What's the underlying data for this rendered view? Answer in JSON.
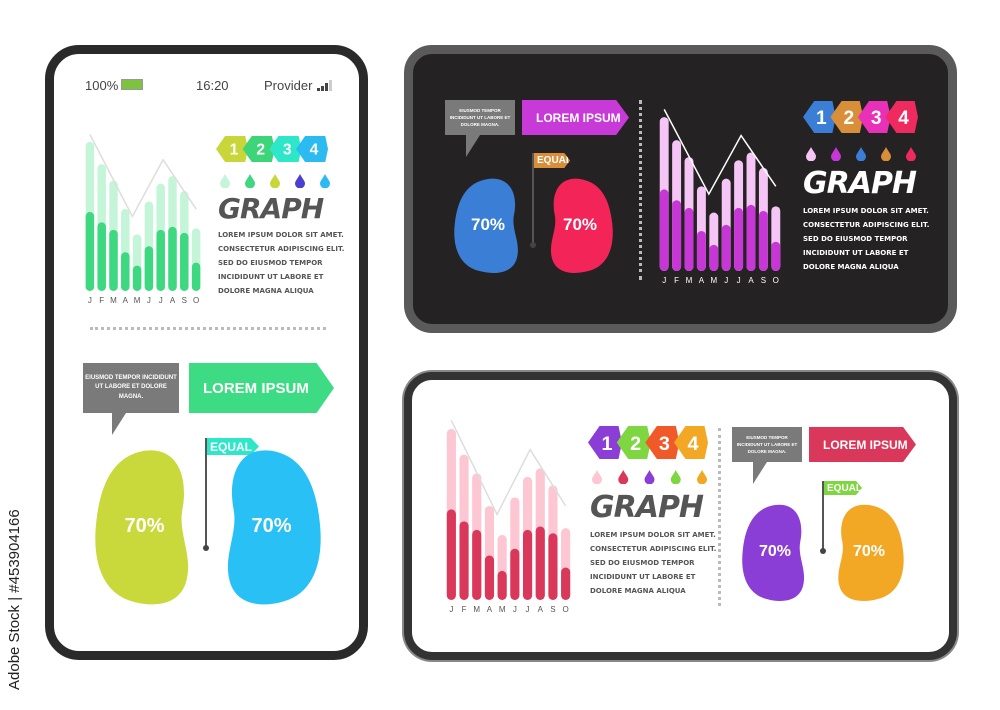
{
  "watermark": "Adobe Stock | #453904166",
  "status_bar": {
    "battery": "100%",
    "time": "16:20",
    "provider": "Provider"
  },
  "chart": {
    "months": [
      "J",
      "F",
      "M",
      "A",
      "M",
      "J",
      "J",
      "A",
      "S",
      "O"
    ],
    "total": [
      1.0,
      0.85,
      0.74,
      0.55,
      0.38,
      0.6,
      0.72,
      0.77,
      0.67,
      0.42
    ],
    "part": [
      0.53,
      0.46,
      0.41,
      0.26,
      0.17,
      0.3,
      0.41,
      0.43,
      0.39,
      0.19
    ],
    "trend": [
      [
        0,
        1.05
      ],
      [
        3.6,
        0.5
      ],
      [
        6.2,
        0.88
      ],
      [
        9,
        0.55
      ]
    ]
  },
  "badges": [
    "1",
    "2",
    "3",
    "4"
  ],
  "graph_title": "GRAPH",
  "body_lines": [
    "LOREM IPSUM DOLOR SIT AMET.",
    "CONSECTETUR ADIPISCING ELIT.",
    "SED DO EIUSMOD TEMPOR",
    "INCIDIDUNT UT LABORE ET",
    "DOLORE MAGNA ALIQUA"
  ],
  "bubble_text": "EIUSMOD TEMPOR INCIDIDUNT UT LABORE ET DOLORE MAGNA.",
  "banner_text": "LOREM IPSUM",
  "equal_text": "EQUAL",
  "blob_values": [
    "70%",
    "70%"
  ],
  "themes": [
    {
      "bar_light": "#c5f5d8",
      "bar_dark": "#3dd87f",
      "line": "#dddddd",
      "badges": [
        "#c8d63a",
        "#3dd47a",
        "#2ee6c8",
        "#2bbbf0"
      ],
      "drops": [
        "#c5f5d8",
        "#3dd87f",
        "#c8d63a",
        "#4b3fd0",
        "#2bbbf0"
      ],
      "text": "#555555",
      "banner": "#3ddc84",
      "equal": "#2ee6c8",
      "blobs": [
        "#c9d83a",
        "#29c0f5"
      ],
      "month_text": "#555555"
    },
    {
      "bar_light": "#f5c5f5",
      "bar_dark": "#c637d6",
      "line": "#ffffff",
      "badges": [
        "#3a7fd5",
        "#d98e3a",
        "#e930b8",
        "#ee2a5e"
      ],
      "drops": [
        "#f5c5f5",
        "#c637d6",
        "#3a7fd5",
        "#d98e3a",
        "#ee2a5e"
      ],
      "text": "#ffffff",
      "banner": "#c83ad8",
      "equal": "#d98e3a",
      "blobs": [
        "#3a7fd5",
        "#f22458"
      ],
      "month_text": "#ffffff"
    },
    {
      "bar_light": "#fcc6d2",
      "bar_dark": "#d9385a",
      "line": "#dddddd",
      "badges": [
        "#8a3ed6",
        "#7ed640",
        "#f05a28",
        "#f2a825"
      ],
      "drops": [
        "#fcc6d2",
        "#d9385a",
        "#8a3ed6",
        "#7ed640",
        "#f2a825"
      ],
      "text": "#555555",
      "banner": "#d9385a",
      "equal": "#7ed640",
      "blobs": [
        "#8a3ed6",
        "#f2a825"
      ],
      "month_text": "#555555"
    }
  ]
}
